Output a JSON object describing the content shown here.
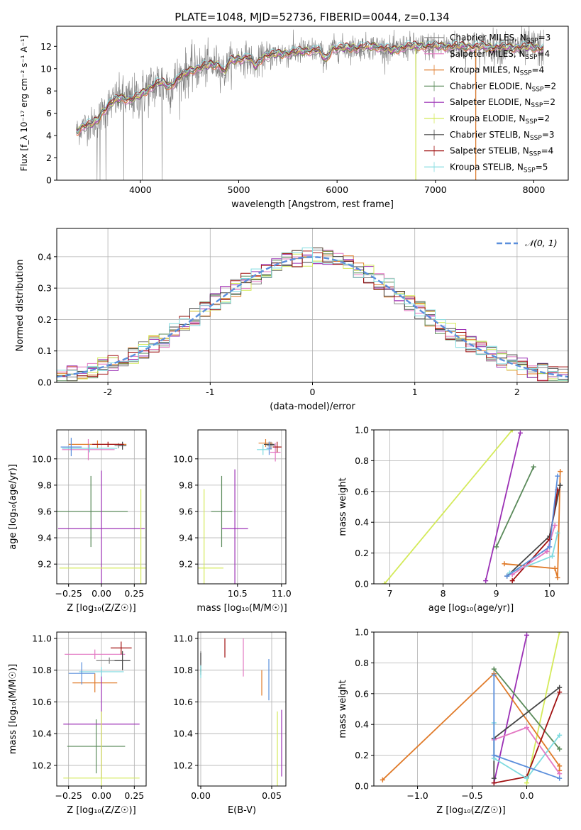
{
  "figure_title": "PLATE=1048, MJD=52736, FIBERID=0044, z=0.134",
  "colors": {
    "Chabrier MILES": "#808080",
    "Salpeter MILES": "#e377c2",
    "Kroupa MILES": "#e07b2a",
    "Chabrier ELODIE": "#5a8a5a",
    "Salpeter ELODIE": "#9b30b5",
    "Kroupa ELODIE": "#d4ea5a",
    "Chabrier STELIB": "#444444",
    "Salpeter STELIB": "#a01010",
    "Kroupa STELIB": "#7fdbe0",
    "extra": "#5b8fdc",
    "gaussian": "#5b8fdc",
    "grid": "#b0b0b0"
  },
  "chart_data": [
    {
      "id": "spectrum",
      "type": "line",
      "title": "PLATE=1048, MJD=52736, FIBERID=0044, z=0.134",
      "xlabel": "wavelength [Angstrom, rest frame]",
      "ylabel": "Flux [f_λ 10⁻¹⁷ erg cm⁻² s⁻¹ A⁻¹]",
      "xlim": [
        3150,
        8350
      ],
      "ylim": [
        0,
        13.8
      ],
      "xticks": [
        4000,
        5000,
        6000,
        7000,
        8000
      ],
      "yticks": [
        0,
        2,
        4,
        6,
        8,
        10,
        12
      ],
      "grid": false,
      "legend_position": "right",
      "legend": [
        {
          "name": "Chabrier MILES",
          "nssp": "3"
        },
        {
          "name": "Salpeter MILES",
          "nssp": "4"
        },
        {
          "name": "Kroupa MILES",
          "nssp": "4"
        },
        {
          "name": "Chabrier ELODIE",
          "nssp": "2"
        },
        {
          "name": "Salpeter ELODIE",
          "nssp": "2"
        },
        {
          "name": "Kroupa ELODIE",
          "nssp": "2"
        },
        {
          "name": "Chabrier STELIB",
          "nssp": "3"
        },
        {
          "name": "Salpeter STELIB",
          "nssp": "4"
        },
        {
          "name": "Kroupa STELIB",
          "nssp": "5"
        }
      ],
      "model_continuum": [
        [
          3360,
          4.4
        ],
        [
          3420,
          4.9
        ],
        [
          3500,
          5.0
        ],
        [
          3560,
          5.3
        ],
        [
          3620,
          6.2
        ],
        [
          3700,
          6.9
        ],
        [
          3800,
          7.4
        ],
        [
          3900,
          7.2
        ],
        [
          4000,
          7.6
        ],
        [
          4100,
          8.3
        ],
        [
          4200,
          8.8
        ],
        [
          4300,
          8.4
        ],
        [
          4400,
          9.2
        ],
        [
          4500,
          9.8
        ],
        [
          4600,
          10.1
        ],
        [
          4700,
          10.3
        ],
        [
          4800,
          10.4
        ],
        [
          4860,
          9.6
        ],
        [
          4900,
          10.6
        ],
        [
          5000,
          10.9
        ],
        [
          5100,
          11.0
        ],
        [
          5175,
          10.2
        ],
        [
          5250,
          11.1
        ],
        [
          5400,
          11.3
        ],
        [
          5600,
          11.5
        ],
        [
          5800,
          11.7
        ],
        [
          5890,
          10.8
        ],
        [
          5950,
          11.8
        ],
        [
          6200,
          11.9
        ],
        [
          6400,
          12.0
        ],
        [
          6563,
          11.6
        ],
        [
          6700,
          12.0
        ],
        [
          7000,
          12.0
        ],
        [
          7300,
          12.0
        ],
        [
          7600,
          11.9
        ],
        [
          8000,
          11.9
        ],
        [
          8100,
          11.8
        ]
      ],
      "data_x_range": [
        3350,
        8100
      ],
      "data_noise_amplitude": [
        [
          3350,
          1.2
        ],
        [
          4200,
          2.2
        ],
        [
          5000,
          1.3
        ],
        [
          6000,
          1.0
        ],
        [
          7000,
          1.1
        ],
        [
          8100,
          1.6
        ]
      ],
      "data_dropouts": [
        [
          3560,
          0
        ],
        [
          3590,
          0
        ],
        [
          3650,
          0
        ],
        [
          3830,
          0
        ],
        [
          4020,
          0
        ],
        [
          4220,
          0
        ],
        [
          6800,
          0
        ],
        [
          7410,
          0
        ]
      ]
    },
    {
      "id": "residuals",
      "type": "histogram",
      "xlabel": "(data-model)/error",
      "ylabel": "Normed distribution",
      "xlim": [
        -2.5,
        2.5
      ],
      "ylim": [
        0,
        0.49
      ],
      "xticks": [
        -2,
        -1,
        0,
        1,
        2
      ],
      "yticks": [
        0.0,
        0.1,
        0.2,
        0.3,
        0.4
      ],
      "grid": true,
      "legend_position": "top-right",
      "gaussian_label": "𝒩(0, 1)",
      "bin_width": 0.1
    },
    {
      "id": "age_vs_Z",
      "type": "scatter",
      "xlabel": "Z [log₁₀(Z/Z☉)]",
      "ylabel": "age  [log₁₀(age/yr)]",
      "xlim": [
        -0.34,
        0.34
      ],
      "ylim": [
        9.05,
        10.22
      ],
      "xticks": [
        -0.25,
        0.0,
        0.25
      ],
      "yticks": [
        9.2,
        9.4,
        9.6,
        9.8,
        10.0
      ],
      "grid": true,
      "points": [
        {
          "series": "Chabrier MILES",
          "x": 0.13,
          "y": 10.1,
          "xerr": 0.03,
          "yerr": 0.02
        },
        {
          "series": "Salpeter MILES",
          "x": -0.1,
          "y": 10.07,
          "xerr": 0.2,
          "yerr": 0.08
        },
        {
          "series": "Kroupa MILES",
          "x": -0.03,
          "y": 10.11,
          "xerr": 0.22,
          "yerr": 0.03
        },
        {
          "series": "Chabrier ELODIE",
          "x": -0.08,
          "y": 9.6,
          "xerr": 0.28,
          "yerr": 0.27
        },
        {
          "series": "Salpeter ELODIE",
          "x": 0.0,
          "y": 9.47,
          "xerr": 0.33,
          "yerr": 0.44
        },
        {
          "series": "Kroupa ELODIE",
          "x": 0.3,
          "y": 9.17,
          "xerr": 0.62,
          "yerr": 0.6
        },
        {
          "series": "Chabrier STELIB",
          "x": 0.16,
          "y": 10.1,
          "xerr": 0.03,
          "yerr": 0.03
        },
        {
          "series": "Salpeter STELIB",
          "x": 0.05,
          "y": 10.11,
          "xerr": 0.12,
          "yerr": 0.02
        },
        {
          "series": "Kroupa STELIB",
          "x": -0.09,
          "y": 10.08,
          "xerr": 0.21,
          "yerr": 0.03
        },
        {
          "series": "extra",
          "x": -0.23,
          "y": 10.09,
          "xerr": 0.08,
          "yerr": 0.07
        }
      ]
    },
    {
      "id": "age_vs_mass",
      "type": "scatter",
      "xlabel": "mass [log₁₀(M/M☉)]",
      "ylabel": "",
      "xlim": [
        10.05,
        11.05
      ],
      "ylim": [
        9.05,
        10.22
      ],
      "xticks": [
        10.5,
        11.0
      ],
      "yticks": [
        9.2,
        9.4,
        9.6,
        9.8,
        10.0
      ],
      "grid": true,
      "points": [
        {
          "series": "Chabrier MILES",
          "x": 10.88,
          "y": 10.1,
          "xerr": 0.05,
          "yerr": 0.03
        },
        {
          "series": "Salpeter MILES",
          "x": 10.93,
          "y": 10.05,
          "xerr": 0.06,
          "yerr": 0.07
        },
        {
          "series": "Kroupa MILES",
          "x": 10.82,
          "y": 10.12,
          "xerr": 0.08,
          "yerr": 0.03
        },
        {
          "series": "Chabrier ELODIE",
          "x": 10.32,
          "y": 9.6,
          "xerr": 0.12,
          "yerr": 0.27
        },
        {
          "series": "Salpeter ELODIE",
          "x": 10.47,
          "y": 9.47,
          "xerr": 0.15,
          "yerr": 0.45
        },
        {
          "series": "Kroupa ELODIE",
          "x": 10.12,
          "y": 9.17,
          "xerr": 0.22,
          "yerr": 0.6
        },
        {
          "series": "Chabrier STELIB",
          "x": 10.86,
          "y": 10.11,
          "xerr": 0.06,
          "yerr": 0.02
        },
        {
          "series": "Salpeter STELIB",
          "x": 10.95,
          "y": 10.09,
          "xerr": 0.05,
          "yerr": 0.04
        },
        {
          "series": "Kroupa STELIB",
          "x": 10.79,
          "y": 10.07,
          "xerr": 0.07,
          "yerr": 0.04
        },
        {
          "series": "extra",
          "x": 10.86,
          "y": 10.08,
          "xerr": 0.03,
          "yerr": 0.05
        }
      ]
    },
    {
      "id": "weight_vs_age",
      "type": "line",
      "xlabel": "age  [log₁₀(age/yr)]",
      "ylabel": "mass weight",
      "xlim": [
        6.7,
        10.35
      ],
      "ylim": [
        0.0,
        1.0
      ],
      "xticks": [
        7,
        8,
        9,
        10
      ],
      "yticks": [
        0.0,
        0.2,
        0.4,
        0.6,
        0.8,
        1.0
      ],
      "grid": true,
      "series": [
        {
          "name": "Kroupa ELODIE",
          "x": [
            6.9,
            9.3
          ],
          "y": [
            0.0,
            1.0
          ]
        },
        {
          "name": "Salpeter ELODIE",
          "x": [
            8.8,
            9.45
          ],
          "y": [
            0.02,
            0.98
          ]
        },
        {
          "name": "Chabrier ELODIE",
          "x": [
            9.0,
            9.7
          ],
          "y": [
            0.24,
            0.76
          ]
        },
        {
          "name": "Kroupa MILES",
          "x": [
            9.15,
            10.1,
            10.15,
            10.2
          ],
          "y": [
            0.13,
            0.1,
            0.04,
            0.73
          ]
        },
        {
          "name": "Chabrier STELIB",
          "x": [
            9.2,
            10.0,
            10.2
          ],
          "y": [
            0.05,
            0.31,
            0.64
          ]
        },
        {
          "name": "Salpeter STELIB",
          "x": [
            9.3,
            10.0,
            10.15
          ],
          "y": [
            0.02,
            0.29,
            0.61
          ]
        },
        {
          "name": "Kroupa STELIB",
          "x": [
            9.25,
            10.05,
            10.15
          ],
          "y": [
            0.07,
            0.18,
            0.33
          ]
        },
        {
          "name": "Salpeter MILES",
          "x": [
            9.3,
            9.95,
            10.1
          ],
          "y": [
            0.06,
            0.21,
            0.38
          ]
        },
        {
          "name": "extra",
          "x": [
            9.2,
            10.0,
            10.15
          ],
          "y": [
            0.05,
            0.24,
            0.7
          ]
        }
      ]
    },
    {
      "id": "mass_vs_Z",
      "type": "scatter",
      "xlabel": "Z [log₁₀(Z/Z☉)]",
      "ylabel": "mass [log₁₀(M/M☉)]",
      "xlim": [
        -0.34,
        0.34
      ],
      "ylim": [
        10.07,
        11.04
      ],
      "xticks": [
        -0.25,
        0.0,
        0.25
      ],
      "yticks": [
        10.2,
        10.4,
        10.6,
        10.8,
        11.0
      ],
      "grid": true,
      "points": [
        {
          "series": "Chabrier MILES",
          "x": 0.06,
          "y": 10.86,
          "xerr": 0.1,
          "yerr": 0.02
        },
        {
          "series": "Salpeter MILES",
          "x": -0.05,
          "y": 10.9,
          "xerr": 0.23,
          "yerr": 0.03
        },
        {
          "series": "Kroupa MILES",
          "x": -0.05,
          "y": 10.72,
          "xerr": 0.17,
          "yerr": 0.06
        },
        {
          "series": "Chabrier ELODIE",
          "x": -0.04,
          "y": 10.32,
          "xerr": 0.22,
          "yerr": 0.17
        },
        {
          "series": "Salpeter ELODIE",
          "x": 0.0,
          "y": 10.46,
          "xerr": 0.29,
          "yerr": 0.34
        },
        {
          "series": "Kroupa ELODIE",
          "x": 0.0,
          "y": 10.12,
          "xerr": 0.29,
          "yerr": 0.42
        },
        {
          "series": "Chabrier STELIB",
          "x": 0.16,
          "y": 10.86,
          "xerr": 0.06,
          "yerr": 0.06
        },
        {
          "series": "Salpeter STELIB",
          "x": 0.15,
          "y": 10.94,
          "xerr": 0.08,
          "yerr": 0.04
        },
        {
          "series": "Kroupa STELIB",
          "x": 0.0,
          "y": 10.79,
          "xerr": 0.17,
          "yerr": 0.03
        },
        {
          "series": "extra",
          "x": -0.15,
          "y": 10.78,
          "xerr": 0.1,
          "yerr": 0.07
        }
      ]
    },
    {
      "id": "mass_vs_EBV",
      "type": "scatter",
      "xlabel": "E(B-V)",
      "ylabel": "",
      "xlim": [
        -0.002,
        0.06
      ],
      "ylim": [
        10.07,
        11.04
      ],
      "xticks": [
        0.0,
        0.05
      ],
      "yticks": [
        10.2,
        10.4,
        10.6,
        10.8,
        11.0
      ],
      "grid": true,
      "points": [
        {
          "series": "Chabrier MILES",
          "x": 0.0,
          "y": 10.88,
          "xerr": 0.0,
          "yerr": 0.04
        },
        {
          "series": "Salpeter MILES",
          "x": 0.03,
          "y": 10.88,
          "xerr": 0.0,
          "yerr": 0.12
        },
        {
          "series": "Kroupa MILES",
          "x": 0.043,
          "y": 10.72,
          "xerr": 0.0,
          "yerr": 0.08
        },
        {
          "series": "Chabrier ELODIE",
          "x": 0.0,
          "y": 10.8,
          "xerr": 0.0,
          "yerr": 0.01
        },
        {
          "series": "Salpeter ELODIE",
          "x": 0.057,
          "y": 10.34,
          "xerr": 0.0,
          "yerr": 0.21
        },
        {
          "series": "Kroupa ELODIE",
          "x": 0.054,
          "y": 10.3,
          "xerr": 0.0,
          "yerr": 0.24
        },
        {
          "series": "Chabrier STELIB",
          "x": 0.0,
          "y": 10.84,
          "xerr": 0.0,
          "yerr": 0.07
        },
        {
          "series": "Salpeter STELIB",
          "x": 0.017,
          "y": 10.94,
          "xerr": 0.0,
          "yerr": 0.06
        },
        {
          "series": "Kroupa STELIB",
          "x": 0.0,
          "y": 10.79,
          "xerr": 0.0,
          "yerr": 0.04
        },
        {
          "series": "extra",
          "x": 0.048,
          "y": 10.74,
          "xerr": 0.0,
          "yerr": 0.13
        }
      ]
    },
    {
      "id": "weight_vs_Z",
      "type": "line",
      "xlabel": "Z [log₁₀(Z/Z☉)]",
      "ylabel": "mass weight",
      "xlim": [
        -1.4,
        0.38
      ],
      "ylim": [
        0.0,
        1.0
      ],
      "xticks": [
        -1.0,
        -0.5,
        0.0
      ],
      "yticks": [
        0.0,
        0.2,
        0.4,
        0.6,
        0.8,
        1.0
      ],
      "grid": true,
      "series": [
        {
          "name": "Kroupa ELODIE",
          "x": [
            0.0,
            0.3
          ],
          "y": [
            0.02,
            1.0
          ]
        },
        {
          "name": "Salpeter ELODIE",
          "x": [
            -0.3,
            0.0
          ],
          "y": [
            0.02,
            0.98
          ]
        },
        {
          "name": "Chabrier ELODIE",
          "x": [
            -0.3,
            0.3
          ],
          "y": [
            0.76,
            0.24
          ]
        },
        {
          "name": "Kroupa MILES",
          "x": [
            -1.32,
            -0.3,
            0.3,
            0.3
          ],
          "y": [
            0.04,
            0.73,
            0.13,
            0.1
          ]
        },
        {
          "name": "Chabrier STELIB",
          "x": [
            -0.3,
            -0.3,
            0.3
          ],
          "y": [
            0.05,
            0.31,
            0.64
          ]
        },
        {
          "name": "Salpeter STELIB",
          "x": [
            -0.3,
            0.0,
            0.3
          ],
          "y": [
            0.02,
            0.06,
            0.61
          ]
        },
        {
          "name": "Kroupa STELIB",
          "x": [
            -0.3,
            -0.3,
            0.0,
            0.3
          ],
          "y": [
            0.41,
            0.18,
            0.05,
            0.33
          ]
        },
        {
          "name": "Salpeter MILES",
          "x": [
            -0.3,
            0.0,
            0.3
          ],
          "y": [
            0.3,
            0.38,
            0.08
          ]
        },
        {
          "name": "extra",
          "x": [
            -0.3,
            -0.3,
            0.3
          ],
          "y": [
            0.72,
            0.2,
            0.05
          ]
        }
      ]
    }
  ]
}
